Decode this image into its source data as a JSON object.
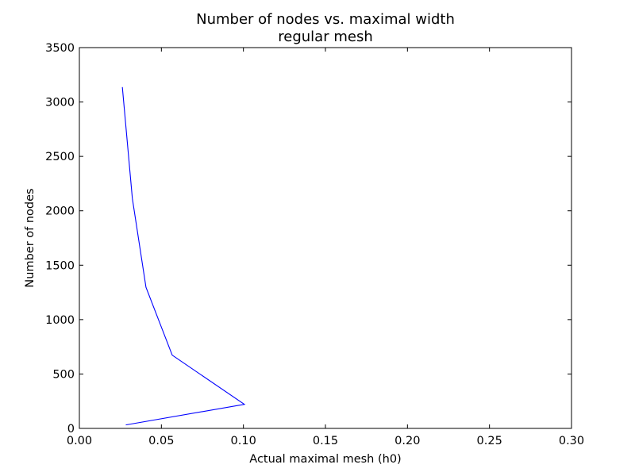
{
  "chart_data": {
    "type": "line",
    "title": "Number of nodes vs. maximal width",
    "subtitle": "regular mesh",
    "xlabel": "Actual maximal mesh (h0)",
    "ylabel": "Number of nodes",
    "xlim": [
      0.0,
      0.3
    ],
    "ylim": [
      0,
      3500
    ],
    "xticks": [
      0.0,
      0.05,
      0.1,
      0.15,
      0.2,
      0.25,
      0.3
    ],
    "xtick_labels": [
      "0.00",
      "0.05",
      "0.10",
      "0.15",
      "0.20",
      "0.25",
      "0.30"
    ],
    "yticks": [
      0,
      500,
      1000,
      1500,
      2000,
      2500,
      3000,
      3500
    ],
    "ytick_labels": [
      "0",
      "500",
      "1000",
      "1500",
      "2000",
      "2500",
      "3000",
      "3500"
    ],
    "grid": false,
    "series": [
      {
        "color": "#0000ff",
        "x": [
          0.0283,
          0.1006,
          0.0566,
          0.0406,
          0.0323,
          0.0262
        ],
        "y": [
          32,
          221,
          673,
          1297,
          2113,
          3137
        ]
      }
    ]
  }
}
